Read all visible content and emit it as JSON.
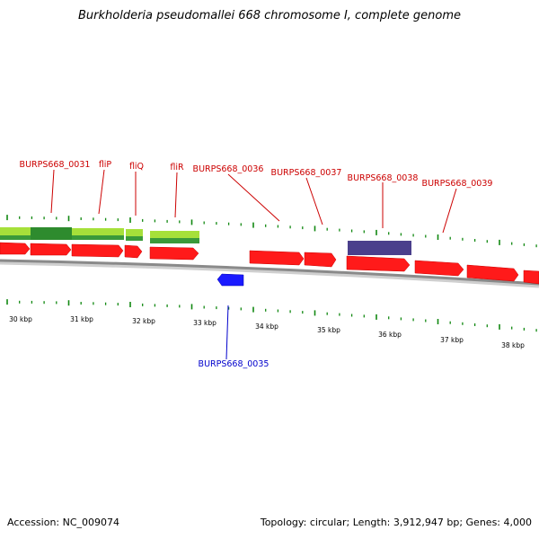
{
  "title": "Burkholderia pseudomallei 668 chromosome I, complete genome",
  "accession": "Accession: NC_009074",
  "summary": "Topology: circular; Length: 3,912,947 bp; Genes: 4,000",
  "colors": {
    "forward_gene": "#ff0000",
    "reverse_gene": "#0000ff",
    "gene_label_forward": "#cc0000",
    "gene_label_reverse": "#0000cc",
    "highlight_green": "#2e8b2e",
    "highlight_lime": "#99dd33",
    "highlight_purple": "#4a3f8c",
    "backbone": "#888888",
    "tick": "#117711"
  },
  "gene_labels": [
    {
      "text": "BURPS668_0031",
      "strand": "forward"
    },
    {
      "text": "fliP",
      "strand": "forward"
    },
    {
      "text": "fliQ",
      "strand": "forward"
    },
    {
      "text": "fliR",
      "strand": "forward"
    },
    {
      "text": "BURPS668_0036",
      "strand": "forward"
    },
    {
      "text": "BURPS668_0037",
      "strand": "forward"
    },
    {
      "text": "BURPS668_0038",
      "strand": "forward"
    },
    {
      "text": "BURPS668_0039",
      "strand": "forward"
    },
    {
      "text": "BURPS668_0035",
      "strand": "reverse"
    }
  ],
  "scale_labels": [
    "30 kbp",
    "31 kbp",
    "32 kbp",
    "33 kbp",
    "34 kbp",
    "35 kbp",
    "36 kbp",
    "37 kbp",
    "38 kbp"
  ]
}
